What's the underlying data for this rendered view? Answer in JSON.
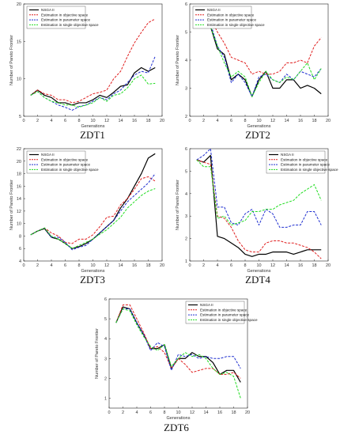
{
  "chart_data": [
    {
      "id": "zdt1",
      "type": "line",
      "title": "ZDT1",
      "xlabel": "Generations",
      "ylabel": "Number of Pareto Frontier",
      "xlim": [
        0,
        20
      ],
      "ylim": [
        5,
        20
      ],
      "xticks": [
        "0",
        "2",
        "4",
        "6",
        "8",
        "10",
        "12",
        "14",
        "16",
        "18",
        "20"
      ],
      "yticks": [
        "5",
        "10",
        "15",
        "20"
      ],
      "legend": "top-left",
      "series": [
        {
          "name": "NSGA II",
          "color": "#000000",
          "dash": "",
          "width": 1.2,
          "x": [
            1,
            2,
            3,
            4,
            5,
            6,
            7,
            8,
            9,
            10,
            11,
            12,
            13,
            14,
            15,
            16,
            17,
            18,
            19
          ],
          "y": [
            7.8,
            8.5,
            7.8,
            7.5,
            6.8,
            6.8,
            6.5,
            6.8,
            6.8,
            7.2,
            7.8,
            7.5,
            8.2,
            9,
            9.2,
            10.8,
            11.5,
            11,
            11.5
          ]
        },
        {
          "name": "Estimation in objective space",
          "color": "#e02020",
          "dash": "3,1.6",
          "width": 1,
          "x": [
            1,
            2,
            3,
            4,
            5,
            6,
            7,
            8,
            9,
            10,
            11,
            12,
            13,
            14,
            15,
            16,
            17,
            18,
            19
          ],
          "y": [
            7.8,
            8.5,
            8,
            7.8,
            7.2,
            7.2,
            6.8,
            7,
            7.5,
            8,
            8.2,
            8.5,
            10,
            11,
            13,
            14.8,
            16.2,
            17.5,
            18
          ]
        },
        {
          "name": "Estimation in parameter space",
          "color": "#2030d0",
          "dash": "3,1.6",
          "width": 1,
          "x": [
            1,
            2,
            3,
            4,
            5,
            6,
            7,
            8,
            9,
            10,
            11,
            12,
            13,
            14,
            15,
            16,
            17,
            18,
            19
          ],
          "y": [
            7.8,
            8.3,
            7.5,
            7,
            6.5,
            6.2,
            5.8,
            6.3,
            6.5,
            7,
            7.5,
            7.2,
            8,
            8.5,
            9.5,
            10.5,
            11,
            10.8,
            13
          ]
        },
        {
          "name": "Estimation in single objective space",
          "color": "#22dd22",
          "dash": "3,1.6",
          "width": 1,
          "x": [
            1,
            2,
            3,
            4,
            5,
            6,
            7,
            8,
            9,
            10,
            11,
            12,
            13,
            14,
            15,
            16,
            17,
            18,
            19
          ],
          "y": [
            7.8,
            8.3,
            7.5,
            7,
            6.8,
            6.5,
            6.5,
            6.2,
            6.5,
            6.8,
            7.5,
            7,
            7.8,
            8,
            8.8,
            10,
            10.5,
            9.3,
            9.4
          ]
        }
      ]
    },
    {
      "id": "zdt2",
      "type": "line",
      "title": "ZDT2",
      "xlabel": "Generations",
      "ylabel": "Number of Pareto Frontier",
      "xlim": [
        0,
        20
      ],
      "ylim": [
        2,
        6
      ],
      "xticks": [
        "0",
        "2",
        "4",
        "6",
        "8",
        "10",
        "12",
        "14",
        "16",
        "18",
        "20"
      ],
      "yticks": [
        "2",
        "3",
        "4",
        "5",
        "6"
      ],
      "legend": "top-left",
      "series": [
        {
          "name": "NSGA II",
          "color": "#000000",
          "dash": "",
          "width": 1.2,
          "x": [
            1,
            2,
            3,
            4,
            5,
            6,
            7,
            8,
            9,
            10,
            11,
            12,
            13,
            14,
            15,
            16,
            17,
            18,
            19
          ],
          "y": [
            5.5,
            5.8,
            5.2,
            4.4,
            4.2,
            3.3,
            3.5,
            3.3,
            2.7,
            3.3,
            3.6,
            3,
            3,
            3.3,
            3.3,
            3,
            3.1,
            3,
            2.8
          ]
        },
        {
          "name": "Estimation in objective space",
          "color": "#e02020",
          "dash": "3,1.6",
          "width": 1,
          "x": [
            1,
            2,
            3,
            4,
            5,
            6,
            7,
            8,
            9,
            10,
            11,
            12,
            13,
            14,
            15,
            16,
            17,
            18,
            19
          ],
          "y": [
            5.5,
            5.8,
            5.5,
            5,
            4.6,
            4.1,
            4,
            3.9,
            3.5,
            3.6,
            3.5,
            3.5,
            3.6,
            3.9,
            3.9,
            4,
            3.9,
            4.5,
            4.8
          ]
        },
        {
          "name": "Estimation in parameter space",
          "color": "#2030d0",
          "dash": "3,1.6",
          "width": 1,
          "x": [
            1,
            2,
            3,
            4,
            5,
            6,
            7,
            8,
            9,
            10,
            11,
            12,
            13,
            14,
            15,
            16,
            17,
            18,
            19
          ],
          "y": [
            5.5,
            5.8,
            5.3,
            4.5,
            4.1,
            3.2,
            3.5,
            3.2,
            2.7,
            3.4,
            3.5,
            3.3,
            3.2,
            3.5,
            3.3,
            3.6,
            3.5,
            3.4,
            3.7
          ]
        },
        {
          "name": "Estimation in single objective space",
          "color": "#22dd22",
          "dash": "3,1.6",
          "width": 1,
          "x": [
            1,
            2,
            3,
            4,
            5,
            6,
            7,
            8,
            9,
            10,
            11,
            12,
            13,
            14,
            15,
            16,
            17,
            18,
            19
          ],
          "y": [
            5.5,
            5.6,
            5.2,
            4.5,
            3.9,
            3.4,
            3.6,
            3.4,
            2.7,
            3.2,
            3.6,
            3.3,
            3.2,
            3.4,
            3.3,
            3.6,
            3.9,
            3.3,
            3.7
          ]
        }
      ]
    },
    {
      "id": "zdt3",
      "type": "line",
      "title": "ZDT3",
      "xlabel": "Generations",
      "ylabel": "Number of Pareto Frontier",
      "xlim": [
        0,
        20
      ],
      "ylim": [
        4,
        22
      ],
      "xticks": [
        "0",
        "2",
        "4",
        "6",
        "8",
        "10",
        "12",
        "14",
        "16",
        "18",
        "20"
      ],
      "yticks": [
        "4",
        "6",
        "8",
        "10",
        "12",
        "14",
        "16",
        "18",
        "20",
        "22"
      ],
      "legend": "top-left",
      "series": [
        {
          "name": "NSGA II",
          "color": "#000000",
          "dash": "",
          "width": 1.2,
          "x": [
            1,
            2,
            3,
            4,
            5,
            6,
            7,
            8,
            9,
            10,
            11,
            12,
            13,
            14,
            15,
            16,
            17,
            18,
            19
          ],
          "y": [
            8.2,
            8.8,
            9.2,
            7.8,
            7.5,
            6.8,
            6,
            6.3,
            6.8,
            7.5,
            8.5,
            9.5,
            10.5,
            12.5,
            14,
            16,
            18,
            20.5,
            21.2
          ]
        },
        {
          "name": "Estimation in objective space",
          "color": "#e02020",
          "dash": "3,1.6",
          "width": 1,
          "x": [
            1,
            2,
            3,
            4,
            5,
            6,
            7,
            8,
            9,
            10,
            11,
            12,
            13,
            14,
            15,
            16,
            17,
            18,
            19
          ],
          "y": [
            8.2,
            8.8,
            9.3,
            8.5,
            8,
            7,
            6.8,
            7.5,
            7.5,
            8.2,
            9.5,
            11,
            11.2,
            13,
            14,
            15.5,
            17.2,
            17.5,
            16.8
          ]
        },
        {
          "name": "Estimation in parameter space",
          "color": "#2030d0",
          "dash": "3,1.6",
          "width": 1,
          "x": [
            1,
            2,
            3,
            4,
            5,
            6,
            7,
            8,
            9,
            10,
            11,
            12,
            13,
            14,
            15,
            16,
            17,
            18,
            19
          ],
          "y": [
            8.2,
            8.8,
            9.3,
            7.8,
            7.8,
            7,
            5.8,
            6.2,
            6.5,
            7.5,
            8.5,
            9.5,
            10.5,
            12,
            13.5,
            14.5,
            15.5,
            16.5,
            18
          ]
        },
        {
          "name": "Estimation in single objective space",
          "color": "#22dd22",
          "dash": "3,1.6",
          "width": 1,
          "x": [
            1,
            2,
            3,
            4,
            5,
            6,
            7,
            8,
            9,
            10,
            11,
            12,
            13,
            14,
            15,
            16,
            17,
            18,
            19
          ],
          "y": [
            8.2,
            8.8,
            9.3,
            8,
            7.5,
            6.8,
            6,
            6.5,
            7,
            7.5,
            8.3,
            9,
            10,
            11,
            12.5,
            13.5,
            14.5,
            15.2,
            15.6
          ]
        }
      ]
    },
    {
      "id": "zdt4",
      "type": "line",
      "title": "ZDT4",
      "xlabel": "Generations",
      "ylabel": "Number of Pareto Frontier",
      "xlim": [
        0,
        20
      ],
      "ylim": [
        1,
        6
      ],
      "xticks": [
        "0",
        "2",
        "4",
        "6",
        "8",
        "10",
        "12",
        "14",
        "16",
        "18",
        "20"
      ],
      "yticks": [
        "1",
        "2",
        "3",
        "4",
        "5",
        "6"
      ],
      "legend": "top-right",
      "series": [
        {
          "name": "NSGA II",
          "color": "#000000",
          "dash": "",
          "width": 1.2,
          "x": [
            1,
            2,
            3,
            4,
            5,
            6,
            7,
            8,
            9,
            10,
            11,
            12,
            13,
            14,
            15,
            16,
            17,
            18,
            19
          ],
          "y": [
            5.5,
            5.4,
            5.7,
            2.1,
            2,
            1.8,
            1.6,
            1.3,
            1.2,
            1.3,
            1.3,
            1.4,
            1.4,
            1.4,
            1.3,
            1.4,
            1.5,
            1.5,
            1.5
          ]
        },
        {
          "name": "Estimation in objective space",
          "color": "#e02020",
          "dash": "3,1.6",
          "width": 1,
          "x": [
            1,
            2,
            3,
            4,
            5,
            6,
            7,
            8,
            9,
            10,
            11,
            12,
            13,
            14,
            15,
            16,
            17,
            18,
            19
          ],
          "y": [
            5.5,
            5.4,
            5.3,
            3,
            2.9,
            2.5,
            1.9,
            1.5,
            1.4,
            1.4,
            1.8,
            1.9,
            1.9,
            1.8,
            1.8,
            1.7,
            1.6,
            1.4,
            1.1
          ]
        },
        {
          "name": "Estimation in parameter space",
          "color": "#2030d0",
          "dash": "3,1.6",
          "width": 1,
          "x": [
            1,
            2,
            3,
            4,
            5,
            6,
            7,
            8,
            9,
            10,
            11,
            12,
            13,
            14,
            15,
            16,
            17,
            18,
            19
          ],
          "y": [
            5.5,
            5.7,
            6,
            3.4,
            3.4,
            2.7,
            2.6,
            3.1,
            3.3,
            2.6,
            3.3,
            3.1,
            2.5,
            2.5,
            2.6,
            2.6,
            3.2,
            3.2,
            2.6
          ]
        },
        {
          "name": "Estimation in single objective space",
          "color": "#22dd22",
          "dash": "3,1.6",
          "width": 1,
          "x": [
            1,
            2,
            3,
            4,
            5,
            6,
            7,
            8,
            9,
            10,
            11,
            12,
            13,
            14,
            15,
            16,
            17,
            18,
            19
          ],
          "y": [
            5.5,
            5.2,
            5.2,
            2.9,
            3,
            2.6,
            2.7,
            2.8,
            3.2,
            3.2,
            3.3,
            3.3,
            3.5,
            3.6,
            3.7,
            4,
            4.2,
            4.4,
            3.7
          ]
        }
      ]
    },
    {
      "id": "zdt6",
      "type": "line",
      "title": "ZDT6",
      "xlabel": "Generations",
      "ylabel": "Number of Pareto Frontier",
      "xlim": [
        0,
        20
      ],
      "ylim": [
        0.5,
        6
      ],
      "xticks": [
        "0",
        "2",
        "4",
        "6",
        "8",
        "10",
        "12",
        "14",
        "16",
        "18",
        "20"
      ],
      "yticks": [
        "1",
        "2",
        "3",
        "4",
        "5",
        "6"
      ],
      "legend": "top-right",
      "series": [
        {
          "name": "NSGA II",
          "color": "#000000",
          "dash": "",
          "width": 1.2,
          "x": [
            1,
            2,
            3,
            4,
            5,
            6,
            7,
            8,
            9,
            10,
            11,
            12,
            13,
            14,
            15,
            16,
            17,
            18,
            19
          ],
          "y": [
            4.8,
            5.6,
            5.5,
            4.8,
            4.2,
            3.5,
            3.5,
            3.7,
            2.5,
            3.0,
            3.0,
            3.3,
            3.1,
            3.1,
            2.8,
            2.2,
            2.4,
            2.4,
            1.8
          ]
        },
        {
          "name": "Estimation in objective space",
          "color": "#e02020",
          "dash": "3,1.6",
          "width": 1,
          "x": [
            1,
            2,
            3,
            4,
            5,
            6,
            7,
            8,
            9,
            10,
            11,
            12,
            13,
            14,
            15,
            16,
            17,
            18,
            19
          ],
          "y": [
            4.8,
            5.7,
            5.7,
            5,
            4.3,
            3.5,
            3.6,
            3.3,
            2.5,
            3.0,
            2.7,
            2.3,
            2.4,
            2.5,
            2.5,
            2.2,
            2.2,
            2.3,
            2.0
          ]
        },
        {
          "name": "Estimation in parameter space",
          "color": "#2030d0",
          "dash": "3,1.6",
          "width": 1,
          "x": [
            1,
            2,
            3,
            4,
            5,
            6,
            7,
            8,
            9,
            10,
            11,
            12,
            13,
            14,
            15,
            16,
            17,
            18,
            19
          ],
          "y": [
            4.8,
            5.5,
            5.5,
            4.8,
            4.2,
            3.4,
            3.8,
            3.6,
            2.4,
            3.2,
            3.1,
            3.2,
            3.0,
            3.1,
            3.0,
            3.0,
            3.1,
            3.1,
            2.5
          ]
        },
        {
          "name": "Estimation in single objective space",
          "color": "#22dd22",
          "dash": "3,1.6",
          "width": 1,
          "x": [
            1,
            2,
            3,
            4,
            5,
            6,
            7,
            8,
            9,
            10,
            11,
            12,
            13,
            14,
            15,
            16,
            17,
            18,
            19
          ],
          "y": [
            4.8,
            5.5,
            5.4,
            4.7,
            4.1,
            3.6,
            3.4,
            3.7,
            2.6,
            3.0,
            3.3,
            3.1,
            3.2,
            3.0,
            2.5,
            2.2,
            2.3,
            2.1,
            1.0
          ]
        }
      ]
    }
  ]
}
